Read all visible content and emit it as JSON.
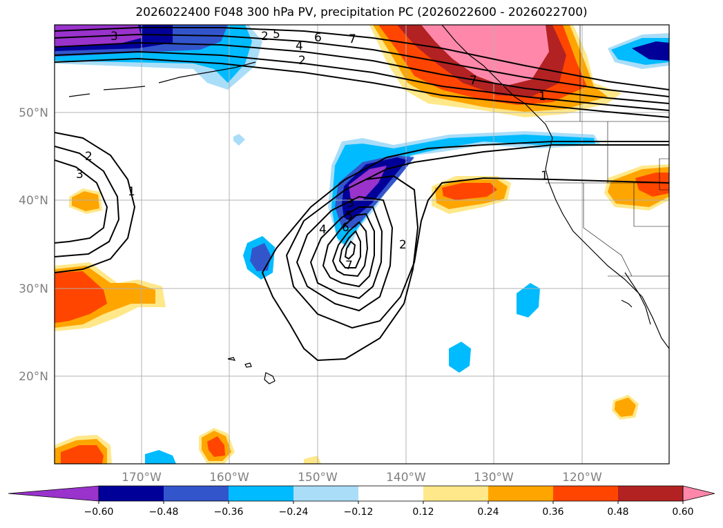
{
  "title": "2026022400 F048 300 hPa PV, precipitation PC (2026022600 - 2026022700)",
  "colors": {
    "purple": "#9933CC",
    "navy": "#000099",
    "royal": "#3355CC",
    "deepsky": "#00BBFF",
    "lightsky": "#AADDF8",
    "white": "#FFFFFF",
    "lightyellow": "#FFE88A",
    "orange": "#FFA500",
    "orangered": "#FF4500",
    "firebrick": "#B22222",
    "pink": "#FF88AA",
    "grid": "#B0B0B0",
    "contour": "#000000"
  },
  "lat_labels": [
    "50°N",
    "40°N",
    "30°N",
    "20°N"
  ],
  "lon_labels": [
    "170°W",
    "160°W",
    "150°W",
    "140°W",
    "130°W",
    "120°W"
  ],
  "colorbar": {
    "ticks": [
      "−0.60",
      "−0.48",
      "−0.36",
      "−0.24",
      "−0.12",
      "0.12",
      "0.24",
      "0.36",
      "0.48",
      "0.60"
    ],
    "colors": [
      "#9933CC",
      "#000099",
      "#3355CC",
      "#00BBFF",
      "#AADDF8",
      "#FFFFFF",
      "#FFE88A",
      "#FFA500",
      "#FF4500",
      "#B22222",
      "#FF88AA"
    ]
  },
  "contour_labels": [
    "1",
    "2",
    "3",
    "4",
    "5",
    "6",
    "7",
    "2",
    "3",
    "2",
    "3",
    "4",
    "5",
    "6",
    "7",
    "1",
    "2",
    "1",
    "7"
  ]
}
